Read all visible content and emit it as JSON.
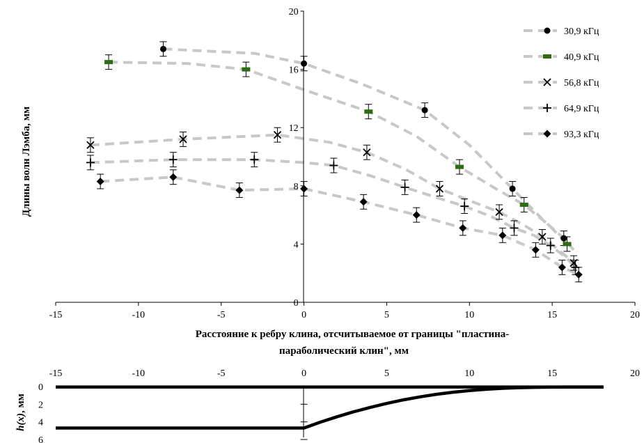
{
  "chart_data": [
    {
      "type": "scatter",
      "title": "",
      "xlabel": "Расстояние к ребру клина, отсчитываемое от границы \"пластина-параболический клин\", мм",
      "xlabel_lines": [
        "Расстояние к ребру клина, отсчитываемое от границы \"пластина-",
        "параболический клин\", мм"
      ],
      "ylabel": "Длины волн Лэмба, мм",
      "xlim": [
        -15,
        20
      ],
      "ylim": [
        0,
        20
      ],
      "xticks": [
        "-15",
        "-10",
        "-5",
        "0",
        "5",
        "10",
        "15",
        "20"
      ],
      "yticks": [
        "0",
        "4",
        "8",
        "12",
        "16",
        "20"
      ],
      "grid": false,
      "legend": "top-right",
      "error_bar": 0.5,
      "series": [
        {
          "name": "30,9 кГц",
          "marker": "circle",
          "color": "#000000",
          "points": [
            [
              -8.5,
              17.4
            ],
            [
              0,
              16.4
            ],
            [
              7.3,
              13.2
            ],
            [
              12.6,
              7.8
            ],
            [
              15.7,
              4.4
            ]
          ],
          "trend": [
            [
              -8.5,
              17.4
            ],
            [
              -3,
              17.1
            ],
            [
              0,
              16.4
            ],
            [
              3.5,
              15.0
            ],
            [
              7.3,
              13.2
            ],
            [
              10,
              10.8
            ],
            [
              12.6,
              7.8
            ],
            [
              14.5,
              5.6
            ],
            [
              15.7,
              4.4
            ],
            [
              16.3,
              3.6
            ]
          ]
        },
        {
          "name": "40,9 кГц",
          "marker": "dash",
          "color": "#2e6b12",
          "points": [
            [
              -11.8,
              16.5
            ],
            [
              -3.5,
              16.0
            ],
            [
              3.9,
              13.1
            ],
            [
              9.4,
              9.3
            ],
            [
              13.3,
              6.7
            ],
            [
              15.9,
              4.0
            ]
          ],
          "trend": [
            [
              -11.8,
              16.5
            ],
            [
              -7,
              16.4
            ],
            [
              -3.5,
              16.0
            ],
            [
              0,
              14.6
            ],
            [
              3.9,
              13.1
            ],
            [
              6.8,
              11.4
            ],
            [
              9.4,
              9.3
            ],
            [
              11.6,
              7.8
            ],
            [
              13.3,
              6.7
            ],
            [
              14.8,
              5.3
            ],
            [
              15.9,
              4.0
            ]
          ]
        },
        {
          "name": "56,8 кГц",
          "marker": "x",
          "color": "#000000",
          "points": [
            [
              -12.9,
              10.8
            ],
            [
              -7.3,
              11.2
            ],
            [
              -1.6,
              11.5
            ],
            [
              3.8,
              10.3
            ],
            [
              8.2,
              7.8
            ],
            [
              11.8,
              6.2
            ],
            [
              14.4,
              4.5
            ],
            [
              16.3,
              2.7
            ]
          ],
          "trend": [
            [
              -12.9,
              10.8
            ],
            [
              -7.3,
              11.2
            ],
            [
              -1.6,
              11.5
            ],
            [
              1.5,
              11.0
            ],
            [
              3.8,
              10.3
            ],
            [
              6.2,
              9.1
            ],
            [
              8.2,
              7.8
            ],
            [
              10.2,
              6.9
            ],
            [
              11.8,
              6.2
            ],
            [
              13.3,
              5.3
            ],
            [
              14.4,
              4.5
            ],
            [
              15.5,
              3.5
            ],
            [
              16.3,
              2.7
            ]
          ]
        },
        {
          "name": "64,9 кГц",
          "marker": "plus",
          "color": "#000000",
          "points": [
            [
              -12.9,
              9.6
            ],
            [
              -7.9,
              9.8
            ],
            [
              -3.0,
              9.8
            ],
            [
              1.8,
              9.4
            ],
            [
              6.1,
              7.9
            ],
            [
              9.7,
              6.6
            ],
            [
              12.7,
              5.1
            ],
            [
              14.9,
              3.9
            ],
            [
              16.4,
              2.4
            ]
          ],
          "trend": [
            [
              -12.9,
              9.6
            ],
            [
              -7.9,
              9.8
            ],
            [
              -3.0,
              9.8
            ],
            [
              0,
              9.6
            ],
            [
              1.8,
              9.4
            ],
            [
              4,
              8.7
            ],
            [
              6.1,
              7.9
            ],
            [
              8,
              7.2
            ],
            [
              9.7,
              6.6
            ],
            [
              11.3,
              5.9
            ],
            [
              12.7,
              5.1
            ],
            [
              13.9,
              4.6
            ],
            [
              14.9,
              3.9
            ],
            [
              15.8,
              3.1
            ],
            [
              16.4,
              2.4
            ]
          ]
        },
        {
          "name": "93,3 кГц",
          "marker": "diamond",
          "color": "#000000",
          "points": [
            [
              -12.3,
              8.3
            ],
            [
              -7.9,
              8.6
            ],
            [
              -3.9,
              7.7
            ],
            [
              0,
              7.8
            ],
            [
              3.6,
              6.9
            ],
            [
              6.8,
              6.0
            ],
            [
              9.6,
              5.1
            ],
            [
              12.0,
              4.6
            ],
            [
              14.0,
              3.6
            ],
            [
              15.6,
              2.4
            ],
            [
              16.6,
              1.9
            ]
          ],
          "trend": [
            [
              -12.3,
              8.3
            ],
            [
              -7.9,
              8.6
            ],
            [
              -3.9,
              7.7
            ],
            [
              0,
              7.8
            ],
            [
              3.6,
              6.9
            ],
            [
              6.8,
              6.0
            ],
            [
              9.6,
              5.1
            ],
            [
              12.0,
              4.6
            ],
            [
              14.0,
              3.6
            ],
            [
              15.6,
              2.4
            ],
            [
              16.6,
              1.9
            ]
          ]
        }
      ]
    },
    {
      "type": "line",
      "title": "",
      "xlabel": "",
      "ylabel": "h(x), мм",
      "ylabel_italic": "h(x)",
      "ylabel_rest": ", мм",
      "xlim": [
        -15,
        20
      ],
      "ylim": [
        0,
        6
      ],
      "y_inverted": true,
      "xticks": [
        "-15",
        "-10",
        "-5",
        "0",
        "5",
        "10",
        "15",
        "20"
      ],
      "yticks": [
        "0",
        "2",
        "4",
        "6"
      ],
      "color": "#000000",
      "series": [
        {
          "name": "",
          "points": [
            [
              -15,
              0.05
            ],
            [
              18.1,
              0.05
            ]
          ]
        },
        {
          "name": "",
          "points": [
            [
              -15,
              4.7
            ],
            [
              0,
              4.7
            ],
            [
              1,
              4.03
            ],
            [
              2,
              3.42
            ],
            [
              3,
              2.86
            ],
            [
              4,
              2.36
            ],
            [
              5,
              1.91
            ],
            [
              6,
              1.51
            ],
            [
              7,
              1.17
            ],
            [
              8,
              0.88
            ],
            [
              9,
              0.64
            ],
            [
              10,
              0.45
            ],
            [
              11,
              0.31
            ],
            [
              12,
              0.2
            ],
            [
              13,
              0.13
            ],
            [
              14,
              0.09
            ],
            [
              15,
              0.06
            ],
            [
              16,
              0.05
            ],
            [
              18.1,
              0.05
            ]
          ]
        }
      ]
    }
  ]
}
